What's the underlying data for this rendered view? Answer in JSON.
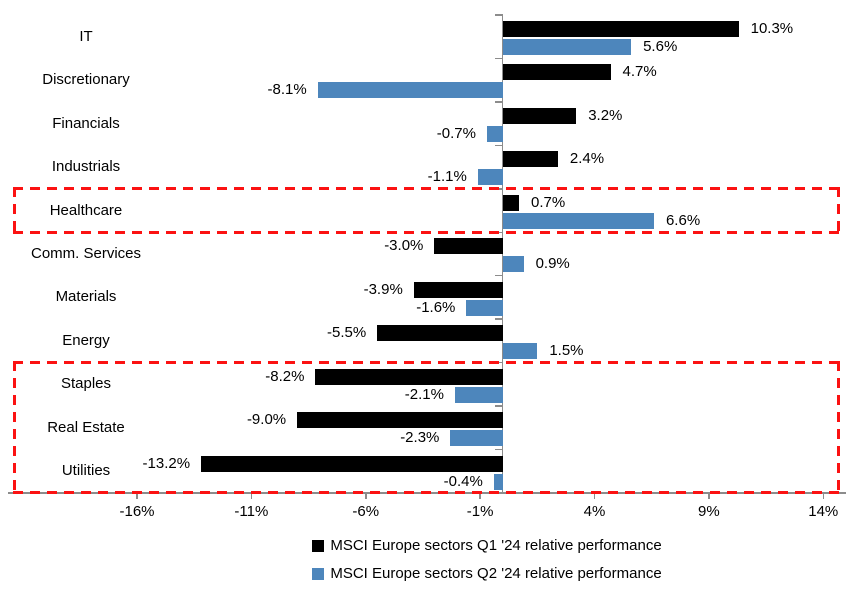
{
  "chart_data": {
    "type": "bar",
    "orientation": "horizontal",
    "grouping": "grouped",
    "categories": [
      "IT",
      "Discretionary",
      "Financials",
      "Industrials",
      "Healthcare",
      "Comm. Services",
      "Materials",
      "Energy",
      "Staples",
      "Real Estate",
      "Utilities"
    ],
    "series": [
      {
        "name": "MSCI Europe sectors Q1 '24 relative performance",
        "color": "#000000",
        "values": [
          10.3,
          4.7,
          3.2,
          2.4,
          0.7,
          -3.0,
          -3.9,
          -5.5,
          -8.2,
          -9.0,
          -13.2
        ]
      },
      {
        "name": "MSCI Europe sectors Q2 '24 relative performance",
        "color": "#4d86bc",
        "values": [
          5.6,
          -8.1,
          -0.7,
          -1.1,
          6.6,
          0.9,
          -1.6,
          1.5,
          -2.1,
          -2.3,
          -0.4
        ]
      }
    ],
    "value_label_format": "one-decimal-percent",
    "x_axis": {
      "tick_labels": [
        "-16%",
        "-11%",
        "-6%",
        "-1%",
        "4%",
        "9%",
        "14%"
      ],
      "tick_values": [
        -16,
        -11,
        -6,
        -1,
        4,
        9,
        14
      ],
      "unit": "%"
    },
    "legend_position": "bottom-center",
    "grid": false,
    "highlight_boxes": [
      {
        "categories": [
          "Healthcare"
        ],
        "row_from": 4,
        "row_to": 4,
        "style": "red-dashed"
      },
      {
        "categories": [
          "Staples",
          "Real Estate",
          "Utilities"
        ],
        "row_from": 8,
        "row_to": 10,
        "style": "red-dashed"
      }
    ],
    "colors": {
      "series_q1": "#000000",
      "series_q2": "#4d86bc",
      "highlight": "#fb1212",
      "axis": "#8c8c8c",
      "text": "#000000"
    }
  }
}
